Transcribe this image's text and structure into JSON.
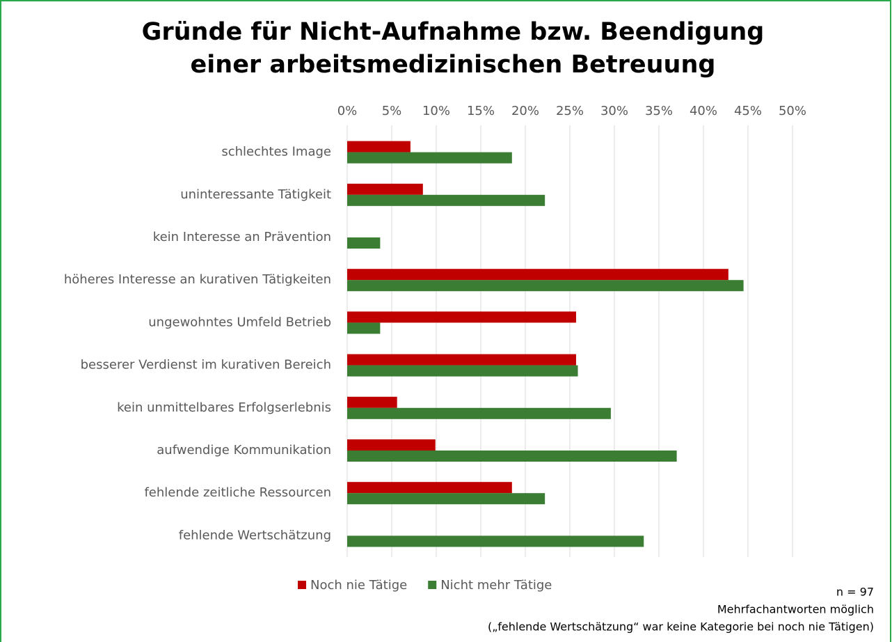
{
  "chart_data": {
    "type": "barh",
    "title": [
      "Gründe für Nicht-Aufnahme bzw. Beendigung",
      "einer arbeitsmedizinischen Betreuung"
    ],
    "categories": [
      "schlechtes Image",
      "uninteressante Tätigkeit",
      "kein Interesse an Prävention",
      "höheres Interesse an kurativen Tätigkeiten",
      "ungewohntes Umfeld Betrieb",
      "besserer Verdienst im kurativen Bereich",
      "kein unmittelbares Erfolgserlebnis",
      "aufwendige Kommunikation",
      "fehlende zeitliche Ressourcen",
      "fehlende Wertschätzung"
    ],
    "series": [
      {
        "name": "Noch nie Tätige",
        "color": "#c00000",
        "values": [
          7.1,
          8.5,
          0,
          42.8,
          25.7,
          25.7,
          5.6,
          9.9,
          18.5,
          null
        ]
      },
      {
        "name": "Nicht mehr Tätige",
        "color": "#3a7d33",
        "values": [
          18.5,
          22.2,
          3.7,
          44.5,
          3.7,
          25.9,
          29.6,
          37.0,
          22.2,
          33.3
        ]
      }
    ],
    "xlim": [
      0,
      50
    ],
    "xticks": [
      {
        "value": 0,
        "label": "0%"
      },
      {
        "value": 5,
        "label": "5%"
      },
      {
        "value": 10,
        "label": "10%"
      },
      {
        "value": 15,
        "label": "15%"
      },
      {
        "value": 20,
        "label": "20%"
      },
      {
        "value": 25,
        "label": "25%"
      },
      {
        "value": 30,
        "label": "30%"
      },
      {
        "value": 35,
        "label": "35%"
      },
      {
        "value": 40,
        "label": "40%"
      },
      {
        "value": 45,
        "label": "45%"
      },
      {
        "value": 50,
        "label": "50%"
      }
    ],
    "grid": true,
    "legend": "bottom",
    "notes": [
      "n = 97",
      "Mehrfachantworten möglich",
      "(„fehlende Wertschätzung“ war keine Kategorie bei noch nie Tätigen)"
    ]
  }
}
